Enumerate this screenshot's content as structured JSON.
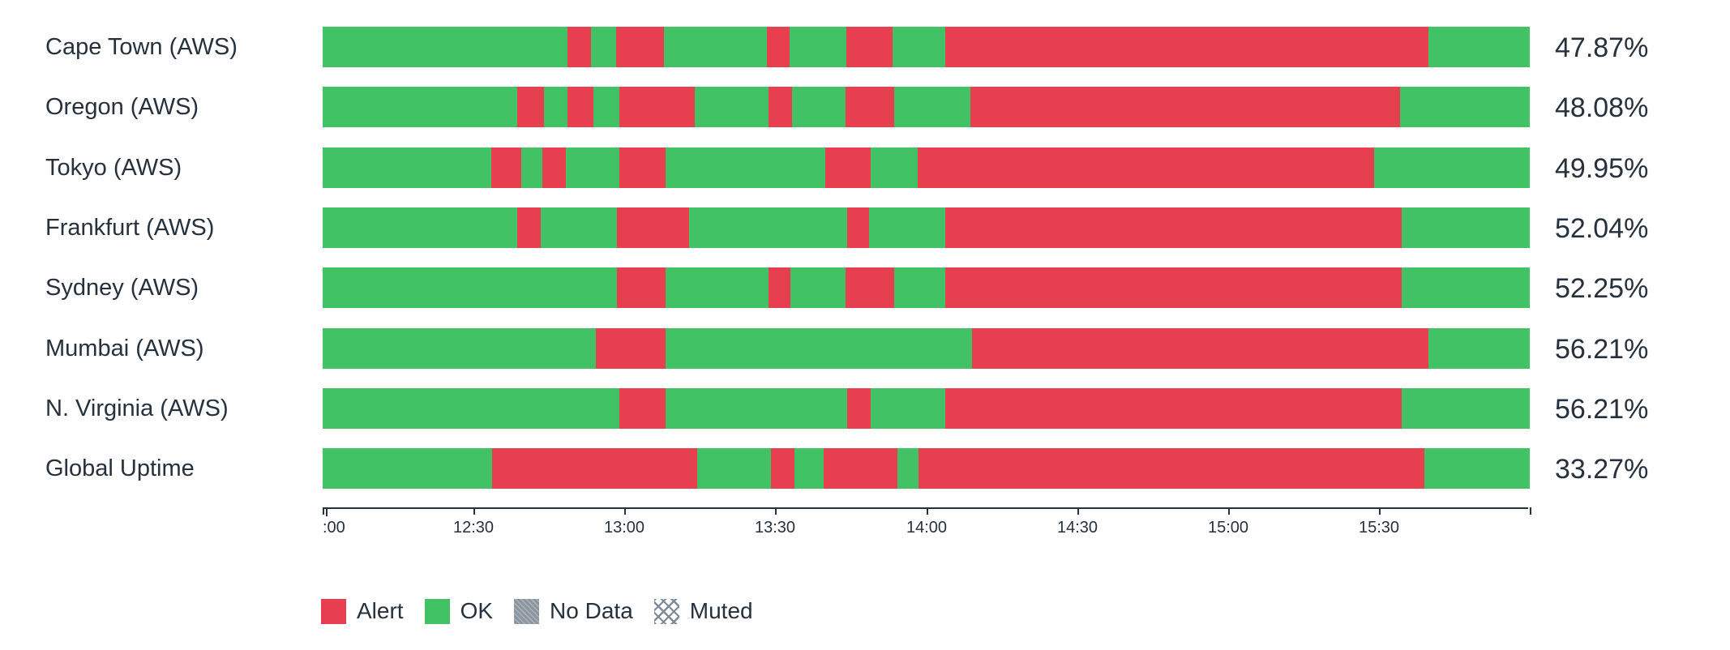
{
  "colors": {
    "ok": "#41c265",
    "alert": "#e73e50",
    "nodata": "#8b95a0",
    "muted": "#7e8a96",
    "text": "#25313d",
    "axis": "#27323f"
  },
  "legend": {
    "items": [
      {
        "label": "Alert",
        "status": "alert",
        "color": "#e73e50"
      },
      {
        "label": "OK",
        "status": "ok",
        "color": "#41c265"
      },
      {
        "label": "No Data",
        "status": "nodata",
        "color": "#8b95a0"
      },
      {
        "label": "Muted",
        "status": "muted",
        "color": "#7e8a96"
      }
    ]
  },
  "chart_data": {
    "type": "bar",
    "subtype": "horizontal-stacked-status-timeline",
    "title": "",
    "x_axis": {
      "start": "12:00",
      "end": "16:00",
      "tick_interval_minutes": 30,
      "tick_labels": [
        ":00",
        "12:30",
        "13:00",
        "13:30",
        "14:00",
        "14:30",
        "15:00",
        "15:30"
      ],
      "end_tick_labeled": false
    },
    "value_axis_note": "segment widths are percent of the 12:00-16:00 window",
    "rows": [
      {
        "label": "Cape Town (AWS)",
        "uptime": "47.87%",
        "segments": [
          [
            "ok",
            20.3
          ],
          [
            "alert",
            1.9
          ],
          [
            "ok",
            2.1
          ],
          [
            "alert",
            4.0
          ],
          [
            "ok",
            8.5
          ],
          [
            "alert",
            1.9
          ],
          [
            "ok",
            4.7
          ],
          [
            "alert",
            3.8
          ],
          [
            "ok",
            4.4
          ],
          [
            "alert",
            40.0
          ],
          [
            "ok",
            8.4
          ]
        ]
      },
      {
        "label": "Oregon (AWS)",
        "uptime": "48.08%",
        "segments": [
          [
            "ok",
            16.14
          ],
          [
            "alert",
            2.21
          ],
          [
            "ok",
            1.94
          ],
          [
            "alert",
            2.14
          ],
          [
            "ok",
            2.12
          ],
          [
            "alert",
            6.28
          ],
          [
            "ok",
            6.14
          ],
          [
            "alert",
            1.94
          ],
          [
            "ok",
            4.41
          ],
          [
            "alert",
            4.0
          ],
          [
            "ok",
            6.34
          ],
          [
            "alert",
            35.58
          ],
          [
            "ok",
            10.76
          ]
        ]
      },
      {
        "label": "Tokyo (AWS)",
        "uptime": "49.95%",
        "segments": [
          [
            "ok",
            13.95
          ],
          [
            "alert",
            2.53
          ],
          [
            "ok",
            1.74
          ],
          [
            "alert",
            1.94
          ],
          [
            "ok",
            4.39
          ],
          [
            "alert",
            3.89
          ],
          [
            "ok",
            13.2
          ],
          [
            "alert",
            3.74
          ],
          [
            "ok",
            3.89
          ],
          [
            "alert",
            37.83
          ],
          [
            "ok",
            12.9
          ]
        ]
      },
      {
        "label": "Frankfurt (AWS)",
        "uptime": "52.04%",
        "segments": [
          [
            "ok",
            16.14
          ],
          [
            "alert",
            1.95
          ],
          [
            "ok",
            6.28
          ],
          [
            "alert",
            6.01
          ],
          [
            "ok",
            13.07
          ],
          [
            "alert",
            1.8
          ],
          [
            "ok",
            6.34
          ],
          [
            "alert",
            37.78
          ],
          [
            "ok",
            10.63
          ]
        ]
      },
      {
        "label": "Sydney (AWS)",
        "uptime": "52.25%",
        "segments": [
          [
            "ok",
            24.37
          ],
          [
            "alert",
            4.07
          ],
          [
            "ok",
            8.53
          ],
          [
            "alert",
            1.81
          ],
          [
            "ok",
            4.53
          ],
          [
            "alert",
            4.01
          ],
          [
            "ok",
            4.27
          ],
          [
            "alert",
            37.78
          ],
          [
            "ok",
            10.63
          ]
        ]
      },
      {
        "label": "Mumbai (AWS)",
        "uptime": "56.21%",
        "segments": [
          [
            "ok",
            22.62
          ],
          [
            "alert",
            5.82
          ],
          [
            "ok",
            25.35
          ],
          [
            "alert",
            37.84
          ],
          [
            "ok",
            8.37
          ]
        ]
      },
      {
        "label": "N. Virginia (AWS)",
        "uptime": "56.21%",
        "segments": [
          [
            "ok",
            24.55
          ],
          [
            "alert",
            3.89
          ],
          [
            "ok",
            15.01
          ],
          [
            "alert",
            1.93
          ],
          [
            "ok",
            6.21
          ],
          [
            "alert",
            37.78
          ],
          [
            "ok",
            10.63
          ]
        ]
      },
      {
        "label": "Global Uptime",
        "uptime": "33.27%",
        "segments": [
          [
            "ok",
            14.02
          ],
          [
            "alert",
            17.0
          ],
          [
            "ok",
            6.15
          ],
          [
            "alert",
            1.94
          ],
          [
            "ok",
            2.4
          ],
          [
            "alert",
            6.13
          ],
          [
            "ok",
            1.75
          ],
          [
            "alert",
            41.91
          ],
          [
            "ok",
            8.7
          ]
        ]
      }
    ]
  }
}
